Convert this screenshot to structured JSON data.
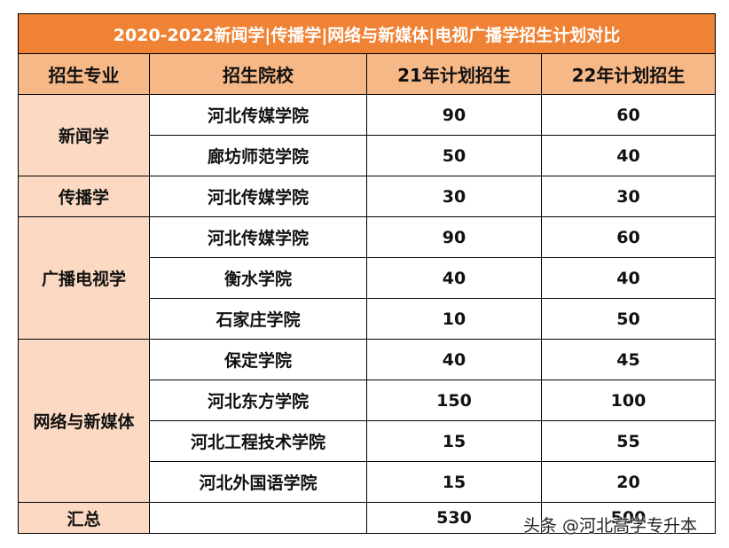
{
  "title": "2020-2022新闻学|传播学|网络与新媒体|电视广播学招生计划对比",
  "header": [
    "招生专业",
    "招生院校",
    "21年计划招生",
    "22年计划招生"
  ],
  "groups": [
    {
      "major": "新闻学",
      "rows": [
        [
          "河北传媒学院",
          90,
          60
        ],
        [
          "廊坊师范学院",
          50,
          40
        ]
      ]
    },
    {
      "major": "传播学",
      "rows": [
        [
          "河北传媒学院",
          30,
          30
        ]
      ]
    },
    {
      "major": "广播电视学",
      "rows": [
        [
          "河北传媒学院",
          90,
          60
        ],
        [
          "衡水学院",
          40,
          40
        ],
        [
          "石家庄学院",
          10,
          50
        ]
      ]
    },
    {
      "major": "网络与新媒体",
      "rows": [
        [
          "保定学院",
          40,
          45
        ],
        [
          "河北东方学院",
          150,
          100
        ],
        [
          "河北工程技术学院",
          15,
          55
        ],
        [
          "河北外国语学院",
          15,
          20
        ]
      ]
    }
  ],
  "total": {
    "label": "汇总",
    "plan21": 530,
    "plan22": 500
  },
  "watermark": "头条 @河北高学专升本"
}
